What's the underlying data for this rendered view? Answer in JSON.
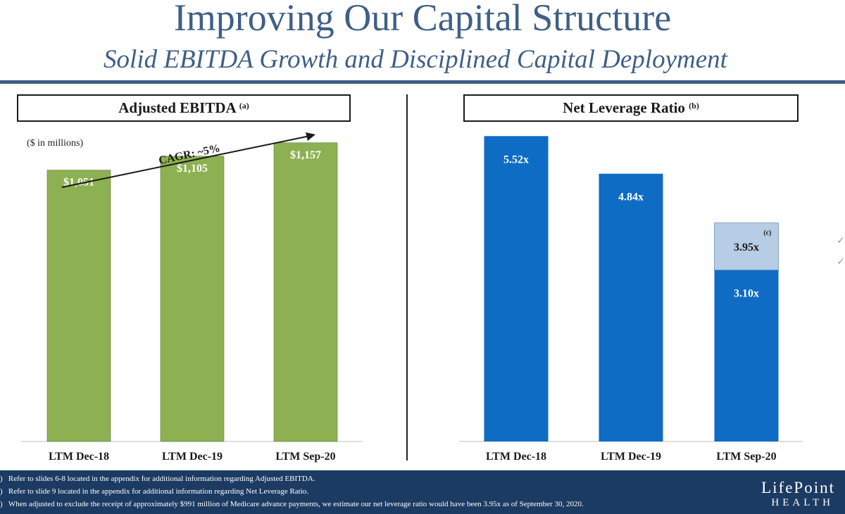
{
  "slide": {
    "title": "Improving Our Capital Structure",
    "subtitle": "Solid EBITDA Growth and Disciplined Capital Deployment"
  },
  "chart_data": [
    {
      "type": "bar",
      "title": "Adjusted EBITDA",
      "title_note": "(a)",
      "units_label": "($ in millions)",
      "categories": [
        "LTM Dec-18",
        "LTM Dec-19",
        "LTM Sep-20"
      ],
      "values": [
        1051,
        1105,
        1157
      ],
      "value_labels": [
        "$1,051",
        "$1,105",
        "$1,157"
      ],
      "annotation": "CAGR: ~5%",
      "ylim": [
        0,
        1200
      ],
      "color": "#8db152"
    },
    {
      "type": "bar",
      "title": "Net Leverage Ratio",
      "title_note": "(b)",
      "categories": [
        "LTM Dec-18",
        "LTM Dec-19",
        "LTM Sep-20"
      ],
      "values": [
        5.52,
        4.84,
        3.1
      ],
      "value_labels": [
        "5.52x",
        "4.84x",
        "3.10x"
      ],
      "adjusted": {
        "category": "LTM Sep-20",
        "value": 3.95,
        "label": "3.95x",
        "note": "(c)",
        "color": "#b7cde6"
      },
      "ylim": [
        0,
        5.6
      ],
      "color": "#0e6cc4"
    }
  ],
  "footnotes": [
    "Refer to slides 6-8 located in the appendix for additional information regarding Adjusted EBITDA.",
    "Refer to slide 9 located in the appendix for additional information regarding Net Leverage Ratio.",
    "When adjusted to exclude the receipt of approximately $991 million of Medicare advance payments, we estimate our net leverage ratio would have been 3.95x as of September 30, 2020."
  ],
  "footnote_markers": [
    ")",
    ")",
    ")"
  ],
  "logo": {
    "top": "LifePoint",
    "bottom": "HEALTH"
  },
  "colors": {
    "navy": "#1c3b63",
    "heading": "#3f5f86"
  }
}
